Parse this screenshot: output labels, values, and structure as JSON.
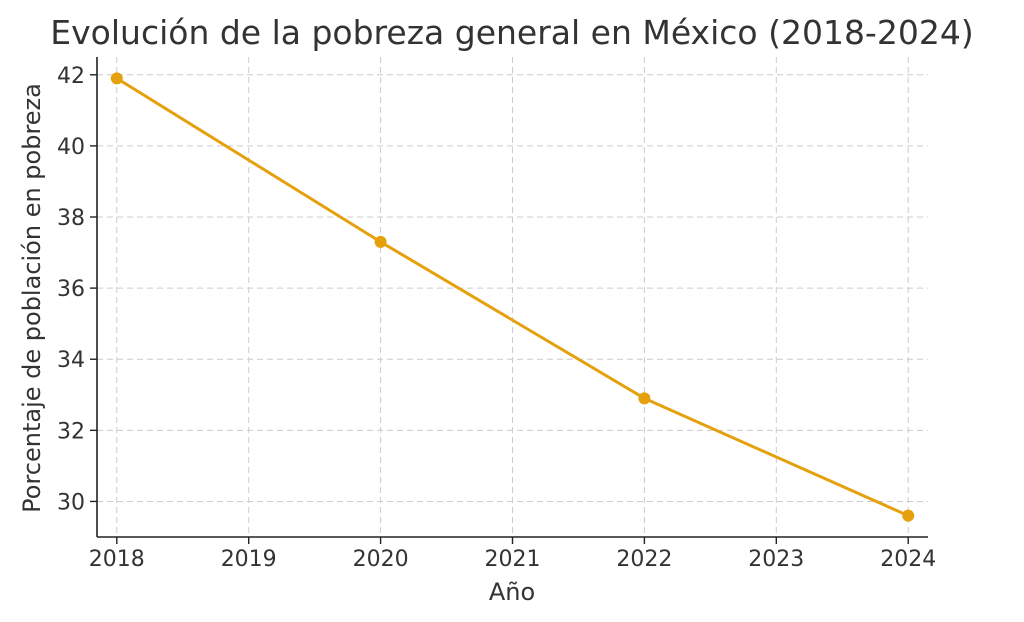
{
  "chart_data": {
    "type": "line",
    "title": "Evolución de la pobreza general en México (2018-2024)",
    "xlabel": "Año",
    "ylabel": "Porcentaje de población en pobreza",
    "x_ticks": [
      "2018",
      "2019",
      "2020",
      "2021",
      "2022",
      "2023",
      "2024"
    ],
    "y_ticks": [
      "30",
      "32",
      "34",
      "36",
      "38",
      "40",
      "42"
    ],
    "xlim": [
      2017.85,
      2024.15
    ],
    "ylim": [
      29.0,
      42.5
    ],
    "grid": true,
    "line_color": "#e5a00d",
    "series": [
      {
        "x": [
          2018,
          2020,
          2022,
          2024
        ],
        "values": [
          41.9,
          37.3,
          32.9,
          29.6
        ]
      }
    ]
  }
}
